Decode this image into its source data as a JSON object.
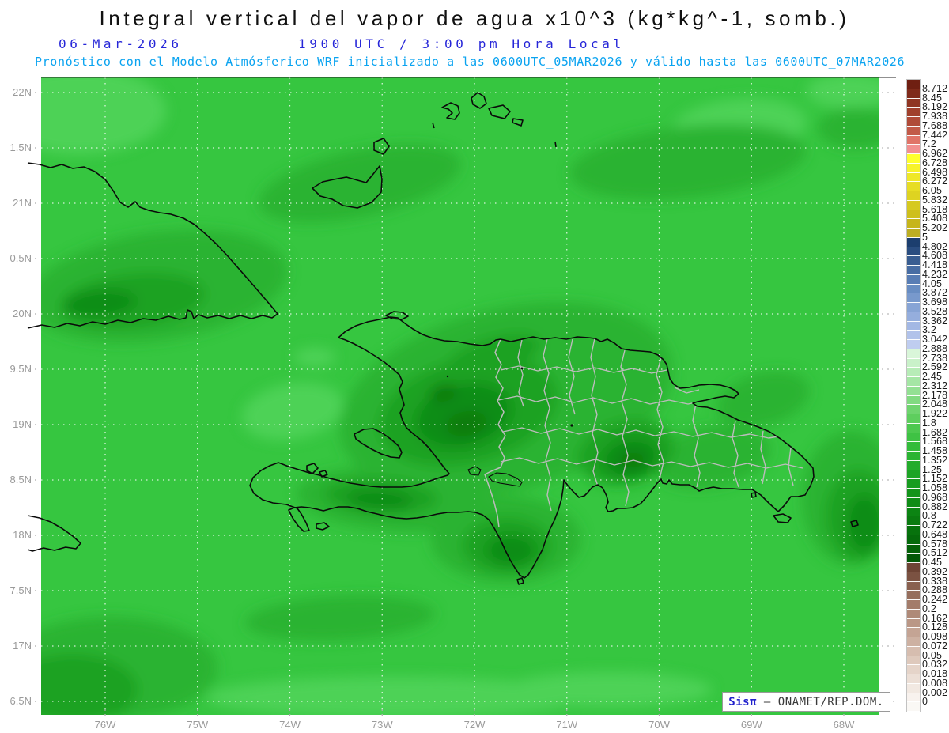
{
  "header": {
    "title": "Integral vertical del vapor de agua x10^3 (kg*kg^-1, somb.)",
    "date": "06-Mar-2026",
    "time": "1900 UTC / 3:00 pm Hora Local",
    "forecast_line": "Pronóstico con el Modelo Atmósferico WRF inicializado a las 0600UTC_05MAR2026 y válido hasta las  0600UTC_07MAR2026",
    "date_time_color": "#2626d8",
    "forecast_color": "#0aa3f0"
  },
  "map": {
    "base_color": "#36c640",
    "lat_labels": [
      "22N",
      "1.5N",
      "21N",
      "0.5N",
      "20N",
      "9.5N",
      "19N",
      "8.5N",
      "18N",
      "7.5N",
      "17N",
      "6.5N"
    ],
    "lon_labels": [
      "76W",
      "75W",
      "74W",
      "73W",
      "72W",
      "71W",
      "70W",
      "69W",
      "68W"
    ]
  },
  "colorbar": {
    "cap_color": "#faf8f5",
    "entries": [
      {
        "label": "8.712",
        "color": "#6f1f12"
      },
      {
        "label": "8.45",
        "color": "#7f2a1a"
      },
      {
        "label": "8.192",
        "color": "#8f3522"
      },
      {
        "label": "7.938",
        "color": "#a0402c"
      },
      {
        "label": "7.688",
        "color": "#b04b38"
      },
      {
        "label": "7.442",
        "color": "#c25a48"
      },
      {
        "label": "7.2",
        "color": "#e07468"
      },
      {
        "label": "6.962",
        "color": "#f29090"
      },
      {
        "label": "6.728",
        "color": "#ffff2d"
      },
      {
        "label": "6.498",
        "color": "#f7f32a"
      },
      {
        "label": "6.272",
        "color": "#efe827"
      },
      {
        "label": "6.05",
        "color": "#e7dd24"
      },
      {
        "label": "5.832",
        "color": "#ded321"
      },
      {
        "label": "5.618",
        "color": "#d6c91f"
      },
      {
        "label": "5.408",
        "color": "#cebf1c"
      },
      {
        "label": "5.202",
        "color": "#c6b51a"
      },
      {
        "label": "5",
        "color": "#bcae22"
      },
      {
        "label": "4.802",
        "color": "#1c3e6e"
      },
      {
        "label": "4.608",
        "color": "#2a4d80"
      },
      {
        "label": "4.418",
        "color": "#395d91"
      },
      {
        "label": "4.232",
        "color": "#486da3"
      },
      {
        "label": "4.05",
        "color": "#587db4"
      },
      {
        "label": "3.872",
        "color": "#688dc2"
      },
      {
        "label": "3.698",
        "color": "#7899cc"
      },
      {
        "label": "3.528",
        "color": "#87a4d5"
      },
      {
        "label": "3.362",
        "color": "#95aedd"
      },
      {
        "label": "3.2",
        "color": "#a3b8e4"
      },
      {
        "label": "3.042",
        "color": "#b1c2ea"
      },
      {
        "label": "2.888",
        "color": "#bfcdf0"
      },
      {
        "label": "2.738",
        "color": "#d9f6d9"
      },
      {
        "label": "2.592",
        "color": "#c9f1c9"
      },
      {
        "label": "2.45",
        "color": "#b7ecb7"
      },
      {
        "label": "2.312",
        "color": "#a5e6a5"
      },
      {
        "label": "2.178",
        "color": "#93e093"
      },
      {
        "label": "2.048",
        "color": "#81da81"
      },
      {
        "label": "1.922",
        "color": "#6fd46f"
      },
      {
        "label": "1.8",
        "color": "#5ece5e"
      },
      {
        "label": "1.682",
        "color": "#4dc84f"
      },
      {
        "label": "1.568",
        "color": "#3fc244"
      },
      {
        "label": "1.458",
        "color": "#33bc3a"
      },
      {
        "label": "1.352",
        "color": "#2ab432"
      },
      {
        "label": "1.25",
        "color": "#23ac2b"
      },
      {
        "label": "1.152",
        "color": "#1da425"
      },
      {
        "label": "1.058",
        "color": "#179c1f"
      },
      {
        "label": "0.968",
        "color": "#13941a"
      },
      {
        "label": "0.882",
        "color": "#0f8c16"
      },
      {
        "label": "0.8",
        "color": "#0c8413"
      },
      {
        "label": "0.722",
        "color": "#0a7b10"
      },
      {
        "label": "0.648",
        "color": "#07720d"
      },
      {
        "label": "0.578",
        "color": "#056a0b"
      },
      {
        "label": "0.512",
        "color": "#046108"
      },
      {
        "label": "0.45",
        "color": "#025806"
      },
      {
        "label": "0.392",
        "color": "#6d4435"
      },
      {
        "label": "0.338",
        "color": "#7b5242"
      },
      {
        "label": "0.288",
        "color": "#89604f"
      },
      {
        "label": "0.242",
        "color": "#966e5c"
      },
      {
        "label": "0.2",
        "color": "#a37c6a"
      },
      {
        "label": "0.162",
        "color": "#af8a78"
      },
      {
        "label": "0.128",
        "color": "#ba9786"
      },
      {
        "label": "0.098",
        "color": "#c4a494"
      },
      {
        "label": "0.072",
        "color": "#cdb1a2"
      },
      {
        "label": "0.05",
        "color": "#d6bdaf"
      },
      {
        "label": "0.032",
        "color": "#dec9bc"
      },
      {
        "label": "0.018",
        "color": "#e5d4c9"
      },
      {
        "label": "0.008",
        "color": "#ecdfd6"
      },
      {
        "label": "0.002",
        "color": "#f2e9e2"
      },
      {
        "label": "0",
        "color": "#f8f2ee"
      }
    ]
  },
  "attribution": {
    "brand": "Sisπ",
    "rest": " – ONAMET/REP.DOM.",
    "brand_color": "#2222cc"
  }
}
